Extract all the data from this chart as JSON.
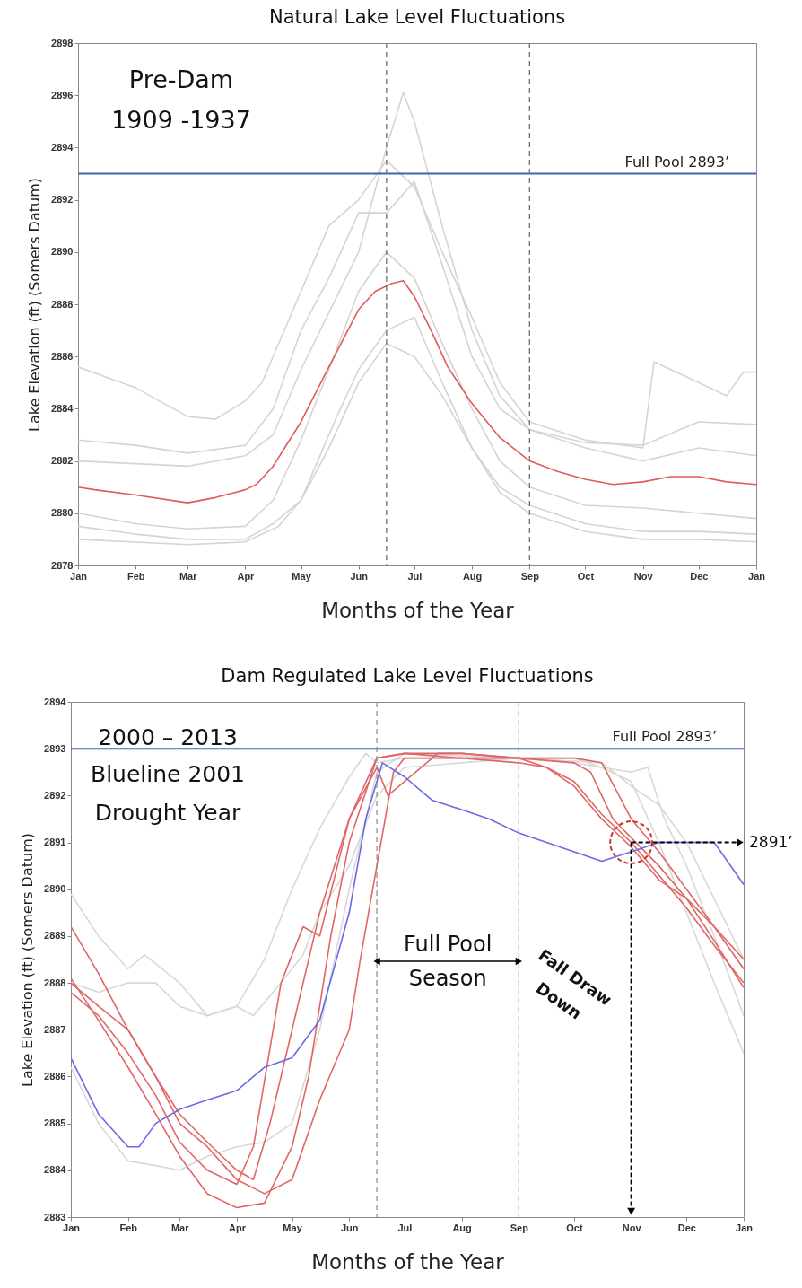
{
  "chart_data": [
    {
      "type": "line",
      "title": "Natural Lake Level Fluctuations",
      "xlabel": "Months of the Year",
      "ylabel": "Lake Elevation (ft) (Somers Datum)",
      "xlim": [
        "2001-01-01",
        "2002-01-01"
      ],
      "xticks": [
        {
          "value": "2001-01-01",
          "label": "Jan"
        },
        {
          "value": "2001-02-01",
          "label": "Feb"
        },
        {
          "value": "2001-03-01",
          "label": "Mar"
        },
        {
          "value": "2001-04-01",
          "label": "Apr"
        },
        {
          "value": "2001-05-01",
          "label": "May"
        },
        {
          "value": "2001-06-01",
          "label": "Jun"
        },
        {
          "value": "2001-07-01",
          "label": "Jul"
        },
        {
          "value": "2001-08-01",
          "label": "Aug"
        },
        {
          "value": "2001-09-01",
          "label": "Sep"
        },
        {
          "value": "2001-10-01",
          "label": "Oct"
        },
        {
          "value": "2001-11-01",
          "label": "Nov"
        },
        {
          "value": "2001-12-01",
          "label": "Dec"
        },
        {
          "value": "2002-01-01",
          "label": "Jan"
        }
      ],
      "ylim": [
        2878,
        2898
      ],
      "yticks": [
        2878,
        2880,
        2882,
        2884,
        2886,
        2888,
        2890,
        2892,
        2894,
        2896,
        2898
      ],
      "series": [
        {
          "color": "#d4d4d4",
          "x": [
            "2001-01-01",
            "2001-02-01",
            "2001-03-01",
            "2001-03-16",
            "2001-04-01",
            "2001-04-10",
            "2001-05-01",
            "2001-05-16",
            "2001-06-01",
            "2001-06-16",
            "2001-07-01",
            "2001-07-16",
            "2001-08-01",
            "2001-08-16",
            "2001-09-01",
            "2001-10-01",
            "2001-11-01",
            "2001-11-07",
            "2001-12-01",
            "2001-12-16",
            "2001-12-25",
            "2002-01-01"
          ],
          "values": [
            2885.6,
            2884.8,
            2883.7,
            2883.6,
            2884.3,
            2885,
            2888.5,
            2891,
            2892,
            2893.5,
            2892.5,
            2890,
            2887.5,
            2885,
            2883.5,
            2882.8,
            2882.5,
            2885.8,
            2885,
            2884.5,
            2885.4,
            2885.4
          ]
        },
        {
          "color": "#d4d4d4",
          "x": [
            "2001-01-01",
            "2001-03-01",
            "2001-04-01",
            "2001-04-16",
            "2001-05-01",
            "2001-06-01",
            "2001-06-16",
            "2001-06-25",
            "2001-07-01",
            "2001-07-16",
            "2001-08-01",
            "2001-08-16",
            "2001-09-01",
            "2001-10-01",
            "2001-11-01",
            "2001-12-01",
            "2002-01-01"
          ],
          "values": [
            2882,
            2881.8,
            2882.2,
            2883,
            2885.5,
            2890,
            2894,
            2896.1,
            2895,
            2891,
            2887,
            2884.5,
            2883.2,
            2882.5,
            2882,
            2882.5,
            2882.2
          ]
        },
        {
          "color": "#d4d4d4",
          "x": [
            "2001-01-01",
            "2001-02-01",
            "2001-03-01",
            "2001-04-01",
            "2001-04-16",
            "2001-05-01",
            "2001-05-16",
            "2001-06-01",
            "2001-06-16",
            "2001-07-01",
            "2001-07-16",
            "2001-08-01",
            "2001-08-16",
            "2001-09-01",
            "2001-10-01",
            "2001-11-01",
            "2001-12-01",
            "2002-01-01"
          ],
          "values": [
            2879.5,
            2879.2,
            2879,
            2879,
            2879.6,
            2880.5,
            2882.5,
            2885,
            2886.5,
            2886,
            2884.5,
            2882.5,
            2881,
            2880.3,
            2879.6,
            2879.3,
            2879.3,
            2879.2
          ]
        },
        {
          "color": "#d4d4d4",
          "x": [
            "2001-01-01",
            "2001-02-01",
            "2001-03-01",
            "2001-04-01",
            "2001-04-16",
            "2001-05-01",
            "2001-05-16",
            "2001-06-01",
            "2001-06-16",
            "2001-07-01",
            "2001-07-16",
            "2001-08-01",
            "2001-08-16",
            "2001-09-01",
            "2001-10-01",
            "2001-11-01",
            "2001-12-01",
            "2002-01-01"
          ],
          "values": [
            2882.8,
            2882.6,
            2882.3,
            2882.6,
            2884,
            2887,
            2889,
            2891.5,
            2891.5,
            2892.7,
            2889.5,
            2886,
            2884,
            2883.2,
            2882.7,
            2882.6,
            2883.5,
            2883.4
          ]
        },
        {
          "color": "#d4d4d4",
          "x": [
            "2001-01-01",
            "2001-02-01",
            "2001-03-01",
            "2001-04-01",
            "2001-04-16",
            "2001-05-01",
            "2001-05-16",
            "2001-06-01",
            "2001-06-16",
            "2001-07-01",
            "2001-07-16",
            "2001-08-01",
            "2001-08-16",
            "2001-09-01",
            "2001-10-01",
            "2001-11-01",
            "2001-12-01",
            "2002-01-01"
          ],
          "values": [
            2880,
            2879.6,
            2879.4,
            2879.5,
            2880.5,
            2882.8,
            2885.5,
            2888.5,
            2890,
            2889,
            2886.5,
            2884,
            2882,
            2881,
            2880.3,
            2880.2,
            2880,
            2879.8
          ]
        },
        {
          "color": "#d4d4d4",
          "x": [
            "2001-01-01",
            "2001-03-01",
            "2001-04-01",
            "2001-04-19",
            "2001-05-01",
            "2001-05-19",
            "2001-06-01",
            "2001-06-16",
            "2001-07-01",
            "2001-07-16",
            "2001-08-01",
            "2001-08-16",
            "2001-09-01",
            "2001-10-01",
            "2001-11-01",
            "2001-12-01",
            "2002-01-01"
          ],
          "values": [
            2879,
            2878.8,
            2878.9,
            2879.5,
            2880.5,
            2883.5,
            2885.5,
            2887,
            2887.5,
            2885,
            2882.5,
            2880.8,
            2880,
            2879.3,
            2879,
            2879,
            2878.9
          ]
        },
        {
          "color": "#e05a5a",
          "x": [
            "2001-01-01",
            "2001-01-10",
            "2001-02-01",
            "2001-03-01",
            "2001-03-16",
            "2001-04-01",
            "2001-04-07",
            "2001-04-16",
            "2001-05-01",
            "2001-05-16",
            "2001-06-01",
            "2001-06-10",
            "2001-06-19",
            "2001-06-25",
            "2001-07-01",
            "2001-07-10",
            "2001-07-19",
            "2001-08-01",
            "2001-08-16",
            "2001-09-01",
            "2001-09-16",
            "2001-10-01",
            "2001-10-16",
            "2001-11-01",
            "2001-11-16",
            "2001-12-01",
            "2001-12-16",
            "2002-01-01"
          ],
          "values": [
            2881,
            2880.9,
            2880.7,
            2880.4,
            2880.6,
            2880.9,
            2881.1,
            2881.8,
            2883.5,
            2885.6,
            2887.8,
            2888.5,
            2888.8,
            2888.9,
            2888.3,
            2887,
            2885.6,
            2884.2,
            2882.9,
            2882,
            2881.6,
            2881.3,
            2881.1,
            2881.2,
            2881.4,
            2881.4,
            2881.2,
            2881.1
          ]
        }
      ],
      "ref_lines": [
        {
          "axis": "y",
          "value": 2893,
          "label": "Full Pool 2893’",
          "color": "#3d66b0",
          "line_style": "solid"
        },
        {
          "axis": "x",
          "value": "2001-06-16",
          "color": "#707070",
          "line_style": "dashed"
        },
        {
          "axis": "x",
          "value": "2001-09-01",
          "color": "#707070",
          "line_style": "dashed"
        }
      ],
      "annotations": [
        "Pre-Dam",
        "1909 -1937"
      ]
    },
    {
      "type": "line",
      "title": "Dam Regulated Lake Level Fluctuations",
      "xlabel": "Months of the Year",
      "ylabel": "Lake Elevation (ft) (Somers Datum)",
      "xlim": [
        "2001-01-01",
        "2002-01-01"
      ],
      "xticks": [
        {
          "value": "2001-01-01",
          "label": "Jan"
        },
        {
          "value": "2001-02-01",
          "label": "Feb"
        },
        {
          "value": "2001-03-01",
          "label": "Mar"
        },
        {
          "value": "2001-04-01",
          "label": "Apr"
        },
        {
          "value": "2001-05-01",
          "label": "May"
        },
        {
          "value": "2001-06-01",
          "label": "Jun"
        },
        {
          "value": "2001-07-01",
          "label": "Jul"
        },
        {
          "value": "2001-08-01",
          "label": "Aug"
        },
        {
          "value": "2001-09-01",
          "label": "Sep"
        },
        {
          "value": "2001-10-01",
          "label": "Oct"
        },
        {
          "value": "2001-11-01",
          "label": "Nov"
        },
        {
          "value": "2001-12-01",
          "label": "Dec"
        },
        {
          "value": "2002-01-01",
          "label": "Jan"
        }
      ],
      "ylim": [
        2883,
        2894
      ],
      "yticks": [
        2883,
        2884,
        2885,
        2886,
        2887,
        2888,
        2889,
        2890,
        2891,
        2892,
        2893,
        2894
      ],
      "series": [
        {
          "color": "#d8d8d8",
          "x": [
            "2001-01-01",
            "2001-01-16",
            "2001-02-01",
            "2001-02-10",
            "2001-03-01",
            "2001-03-16",
            "2001-04-01",
            "2001-04-16",
            "2001-05-01",
            "2001-05-16",
            "2001-06-01",
            "2001-06-10",
            "2001-06-16",
            "2001-07-01",
            "2001-09-01",
            "2001-10-01",
            "2001-10-16",
            "2001-11-01",
            "2001-11-10",
            "2001-11-19",
            "2001-12-01",
            "2001-12-16",
            "2002-01-01"
          ],
          "values": [
            2889.9,
            2889,
            2888.3,
            2888.6,
            2888,
            2887.3,
            2887.5,
            2888.5,
            2890,
            2891.3,
            2892.4,
            2892.9,
            2892.7,
            2892.8,
            2892.8,
            2892.8,
            2892.6,
            2892.5,
            2892.6,
            2891.5,
            2890.5,
            2889,
            2887.3
          ]
        },
        {
          "color": "#d8d8d8",
          "x": [
            "2001-01-01",
            "2001-01-16",
            "2001-02-01",
            "2001-02-16",
            "2001-03-01",
            "2001-03-16",
            "2001-04-01",
            "2001-04-10",
            "2001-04-25",
            "2001-05-07",
            "2001-05-16",
            "2001-06-01",
            "2001-06-16",
            "2001-07-01",
            "2001-09-01",
            "2001-10-01",
            "2001-10-16",
            "2001-11-01",
            "2001-11-16",
            "2001-12-01",
            "2001-12-16",
            "2002-01-01"
          ],
          "values": [
            2888,
            2887.8,
            2888,
            2888,
            2887.5,
            2887.3,
            2887.5,
            2887.3,
            2888,
            2888.6,
            2889.5,
            2890.5,
            2892,
            2892.6,
            2892.8,
            2892.7,
            2892.6,
            2892.3,
            2891,
            2889.5,
            2888,
            2886.5
          ]
        },
        {
          "color": "#d8d8d8",
          "x": [
            "2001-01-01",
            "2001-01-16",
            "2001-02-01",
            "2001-02-16",
            "2001-03-01",
            "2001-03-16",
            "2001-04-01",
            "2001-04-16",
            "2001-05-01",
            "2001-05-16",
            "2001-06-01",
            "2001-06-16",
            "2001-07-01",
            "2001-09-01",
            "2001-10-16",
            "2001-11-01",
            "2001-11-16",
            "2001-12-01",
            "2001-12-16",
            "2002-01-01"
          ],
          "values": [
            2886.2,
            2885,
            2884.2,
            2884.1,
            2884,
            2884.3,
            2884.5,
            2884.6,
            2885,
            2887,
            2890,
            2892.5,
            2892.9,
            2892.8,
            2892.7,
            2892.2,
            2891.8,
            2891,
            2889.8,
            2888.5
          ]
        },
        {
          "color": "#e06666",
          "x": [
            "2001-01-01",
            "2001-01-16",
            "2001-02-01",
            "2001-02-16",
            "2001-03-01",
            "2001-03-16",
            "2001-04-01",
            "2001-04-16",
            "2001-05-01",
            "2001-05-10",
            "2001-05-22",
            "2001-06-01",
            "2001-06-16",
            "2001-07-01",
            "2001-08-01",
            "2001-09-01",
            "2001-09-16",
            "2001-10-01",
            "2001-10-16",
            "2001-11-01",
            "2001-11-16",
            "2001-12-01",
            "2001-12-16",
            "2002-01-01"
          ],
          "values": [
            2888.1,
            2887.2,
            2886.2,
            2885.2,
            2884.3,
            2883.5,
            2883.2,
            2883.3,
            2884.5,
            2886,
            2889,
            2891,
            2892.8,
            2892.9,
            2892.8,
            2892.7,
            2892.6,
            2892.3,
            2891.6,
            2891,
            2890.3,
            2889.6,
            2888.8,
            2888
          ]
        },
        {
          "color": "#e06666",
          "x": [
            "2001-01-01",
            "2001-01-16",
            "2001-02-01",
            "2001-02-16",
            "2001-03-01",
            "2001-03-16",
            "2001-04-01",
            "2001-04-10",
            "2001-04-19",
            "2001-05-01",
            "2001-05-16",
            "2001-06-01",
            "2001-06-16",
            "2001-07-01",
            "2001-08-01",
            "2001-09-01",
            "2001-10-01",
            "2001-10-10",
            "2001-10-22",
            "2001-11-01",
            "2001-11-16",
            "2001-12-01",
            "2001-12-16",
            "2002-01-01"
          ],
          "values": [
            2889.2,
            2888.2,
            2887,
            2886,
            2885.2,
            2884.6,
            2884,
            2883.8,
            2885,
            2887,
            2889.5,
            2891.5,
            2892.8,
            2892.9,
            2892.9,
            2892.8,
            2892.7,
            2892.5,
            2891.5,
            2891.1,
            2890.5,
            2889.8,
            2888.9,
            2887.9
          ]
        },
        {
          "color": "#e06666",
          "x": [
            "2001-01-01",
            "2001-01-16",
            "2001-02-01",
            "2001-02-16",
            "2001-03-01",
            "2001-03-16",
            "2001-04-01",
            "2001-04-16",
            "2001-05-01",
            "2001-05-16",
            "2001-06-01",
            "2001-06-07",
            "2001-06-16",
            "2001-06-25",
            "2001-07-01",
            "2001-08-01",
            "2001-09-01",
            "2001-10-01",
            "2001-10-16",
            "2001-11-01",
            "2001-11-16",
            "2001-12-01",
            "2001-12-16",
            "2002-01-01"
          ],
          "values": [
            2888,
            2887.5,
            2887,
            2886,
            2885,
            2884.5,
            2883.8,
            2883.5,
            2883.8,
            2885.5,
            2887,
            2888.5,
            2890.5,
            2892.5,
            2892.8,
            2892.8,
            2892.8,
            2892.8,
            2892.7,
            2891.5,
            2890.8,
            2890,
            2889.2,
            2888.5
          ]
        },
        {
          "color": "#e06666",
          "x": [
            "2001-01-01",
            "2001-01-16",
            "2001-02-01",
            "2001-02-16",
            "2001-03-01",
            "2001-03-16",
            "2001-04-01",
            "2001-04-10",
            "2001-04-25",
            "2001-05-07",
            "2001-05-16",
            "2001-06-01",
            "2001-06-16",
            "2001-06-22",
            "2001-07-01",
            "2001-07-10",
            "2001-07-19",
            "2001-08-01",
            "2001-09-01",
            "2001-09-16",
            "2001-10-01",
            "2001-10-16",
            "2001-11-01",
            "2001-11-16",
            "2001-12-01",
            "2001-12-16",
            "2002-01-01"
          ],
          "values": [
            2887.8,
            2887.3,
            2886.5,
            2885.6,
            2884.6,
            2884,
            2883.7,
            2884.5,
            2888,
            2889.2,
            2889,
            2891.5,
            2892.6,
            2892,
            2892.3,
            2892.6,
            2892.9,
            2892.9,
            2892.8,
            2892.6,
            2892.2,
            2891.5,
            2890.9,
            2890.2,
            2889.8,
            2889.2,
            2888.3
          ]
        },
        {
          "color": "#6a6ae6",
          "x": [
            "2001-01-01",
            "2001-01-16",
            "2001-02-01",
            "2001-02-07",
            "2001-02-16",
            "2001-03-01",
            "2001-03-16",
            "2001-04-01",
            "2001-04-16",
            "2001-05-01",
            "2001-05-16",
            "2001-06-01",
            "2001-06-10",
            "2001-06-19",
            "2001-07-01",
            "2001-07-16",
            "2001-08-01",
            "2001-08-16",
            "2001-09-01",
            "2001-09-16",
            "2001-10-01",
            "2001-10-16",
            "2001-11-01",
            "2001-11-16",
            "2001-12-01",
            "2001-12-16",
            "2002-01-01"
          ],
          "values": [
            2886.4,
            2885.2,
            2884.5,
            2884.5,
            2885,
            2885.3,
            2885.5,
            2885.7,
            2886.2,
            2886.4,
            2887.2,
            2889.5,
            2891.5,
            2892.7,
            2892.4,
            2891.9,
            2891.7,
            2891.5,
            2891.2,
            2891,
            2890.8,
            2890.6,
            2890.8,
            2891,
            2891,
            2891,
            2890.1
          ]
        }
      ],
      "ref_lines": [
        {
          "axis": "y",
          "value": 2893,
          "label": "Full Pool 2893’",
          "color": "#3d66b0",
          "line_style": "solid"
        },
        {
          "axis": "x",
          "value": "2001-06-16",
          "color": "#909090",
          "line_style": "dashed"
        },
        {
          "axis": "x",
          "value": "2001-09-01",
          "color": "#909090",
          "line_style": "dashed"
        }
      ],
      "annotations": [
        "2000 – 2013",
        "Blueline 2001",
        "Drought Year",
        "Full Pool",
        "Season",
        "Fall Draw",
        "Down",
        {
          "text": "2891’",
          "x": "2001-11-01",
          "y": 2891
        }
      ]
    }
  ]
}
